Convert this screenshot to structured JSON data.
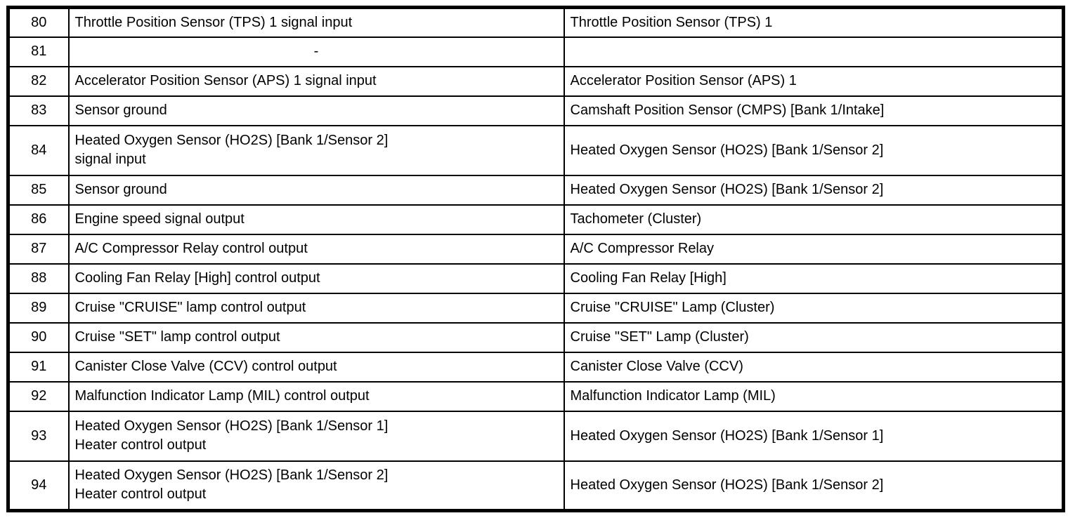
{
  "table": {
    "name": "ecu-connector-pin-assignment",
    "border_color": "#000000",
    "background_color": "#ffffff",
    "rows": [
      {
        "pin": "80",
        "description": "Throttle Position Sensor (TPS) 1 signal input",
        "connected_to": "Throttle Position Sensor (TPS) 1",
        "tall": false,
        "center_description": false
      },
      {
        "pin": "81",
        "description": "-",
        "connected_to": "",
        "tall": false,
        "center_description": true
      },
      {
        "pin": "82",
        "description": "Accelerator Position Sensor (APS) 1 signal input",
        "connected_to": "Accelerator Position Sensor (APS) 1",
        "tall": false,
        "center_description": false
      },
      {
        "pin": "83",
        "description": "Sensor ground",
        "connected_to": "Camshaft Position Sensor (CMPS) [Bank 1/Intake]",
        "tall": false,
        "center_description": false
      },
      {
        "pin": "84",
        "description": "Heated Oxygen Sensor (HO2S) [Bank 1/Sensor 2]\nsignal input",
        "connected_to": "Heated Oxygen Sensor (HO2S) [Bank 1/Sensor 2]",
        "tall": true,
        "center_description": false
      },
      {
        "pin": "85",
        "description": "Sensor ground",
        "connected_to": "Heated Oxygen Sensor (HO2S) [Bank 1/Sensor 2]",
        "tall": false,
        "center_description": false
      },
      {
        "pin": "86",
        "description": "Engine speed signal output",
        "connected_to": "Tachometer (Cluster)",
        "tall": false,
        "center_description": false
      },
      {
        "pin": "87",
        "description": "A/C Compressor Relay control output",
        "connected_to": "A/C Compressor Relay",
        "tall": false,
        "center_description": false
      },
      {
        "pin": "88",
        "description": "Cooling Fan Relay [High] control output",
        "connected_to": "Cooling Fan Relay [High]",
        "tall": false,
        "center_description": false
      },
      {
        "pin": "89",
        "description": "Cruise \"CRUISE\" lamp control output",
        "connected_to": "Cruise \"CRUISE\" Lamp (Cluster)",
        "tall": false,
        "center_description": false
      },
      {
        "pin": "90",
        "description": "Cruise \"SET\" lamp control output",
        "connected_to": "Cruise \"SET\" Lamp (Cluster)",
        "tall": false,
        "center_description": false
      },
      {
        "pin": "91",
        "description": "Canister Close Valve (CCV) control output",
        "connected_to": "Canister Close Valve (CCV)",
        "tall": false,
        "center_description": false
      },
      {
        "pin": "92",
        "description": "Malfunction Indicator Lamp (MIL) control output",
        "connected_to": "Malfunction Indicator Lamp (MIL)",
        "tall": false,
        "center_description": false
      },
      {
        "pin": "93",
        "description": "Heated Oxygen Sensor (HO2S) [Bank 1/Sensor 1]\nHeater control output",
        "connected_to": "Heated Oxygen Sensor (HO2S) [Bank 1/Sensor 1]",
        "tall": true,
        "center_description": false
      },
      {
        "pin": "94",
        "description": "Heated Oxygen Sensor (HO2S) [Bank 1/Sensor 2]\nHeater control output",
        "connected_to": "Heated Oxygen Sensor (HO2S) [Bank 1/Sensor 2]",
        "tall": true,
        "center_description": false
      }
    ]
  }
}
